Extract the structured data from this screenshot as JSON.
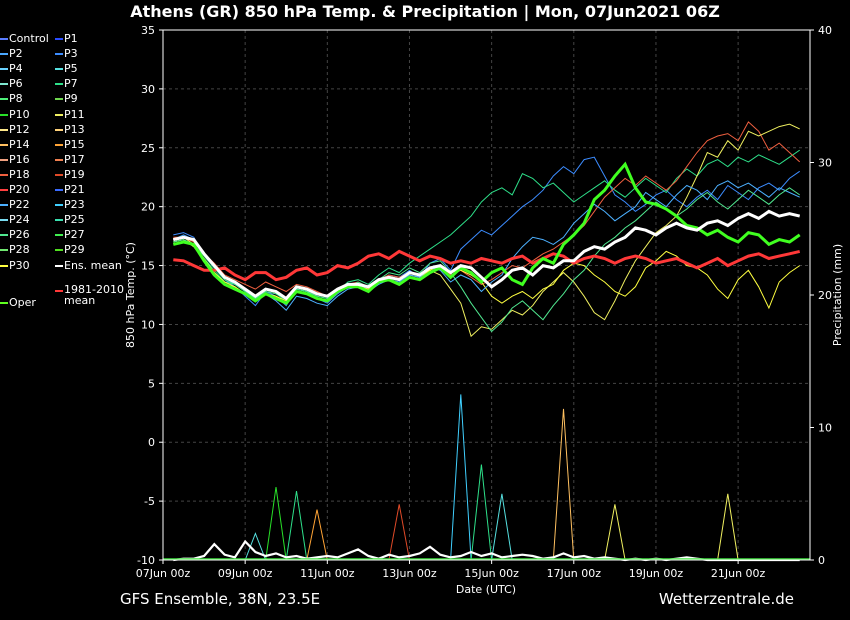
{
  "title": "Athens  (GR)  850 hPa Temp. & Precipitation | Mon, 07Jun2021 06Z",
  "footer_left": "GFS Ensemble, 38N, 23.5E",
  "footer_right": "Wetterzentrale.de",
  "legend": [
    {
      "label": "Control",
      "color": "#5a7dff"
    },
    {
      "label": "P1",
      "color": "#2a4dff"
    },
    {
      "label": "P2",
      "color": "#4aa8ff"
    },
    {
      "label": "P3",
      "color": "#3c8cff"
    },
    {
      "label": "P4",
      "color": "#6ad3ff"
    },
    {
      "label": "P5",
      "color": "#56e0e0"
    },
    {
      "label": "P6",
      "color": "#7ee8d0"
    },
    {
      "label": "P7",
      "color": "#2ee08a"
    },
    {
      "label": "P8",
      "color": "#4ef07a"
    },
    {
      "label": "P9",
      "color": "#6ed64e"
    },
    {
      "label": "P10",
      "color": "#28e028"
    },
    {
      "label": "P11",
      "color": "#f0f060"
    },
    {
      "label": "P12",
      "color": "#ffe88a"
    },
    {
      "label": "P13",
      "color": "#ffd27a"
    },
    {
      "label": "P14",
      "color": "#ffc060"
    },
    {
      "label": "P15",
      "color": "#ffa436"
    },
    {
      "label": "P16",
      "color": "#f0a080"
    },
    {
      "label": "P17",
      "color": "#f08050"
    },
    {
      "label": "P18",
      "color": "#f06040"
    },
    {
      "label": "P19",
      "color": "#e04a28"
    },
    {
      "label": "P20",
      "color": "#ff4040"
    },
    {
      "label": "P21",
      "color": "#3a6cff"
    },
    {
      "label": "P22",
      "color": "#4cb0ff"
    },
    {
      "label": "P23",
      "color": "#40d0ff"
    },
    {
      "label": "P24",
      "color": "#7adcf0"
    },
    {
      "label": "P25",
      "color": "#3ae0b0"
    },
    {
      "label": "P26",
      "color": "#50e890"
    },
    {
      "label": "P27",
      "color": "#40f050"
    },
    {
      "label": "P28",
      "color": "#70e870"
    },
    {
      "label": "P29",
      "color": "#50e020"
    },
    {
      "label": "P30",
      "color": "#ffff40"
    },
    {
      "label": "Ens. mean",
      "color": "#ffffff"
    },
    {
      "label": "Oper",
      "color": "#60ff20"
    },
    {
      "label": "1981-2010 mean",
      "color": "#ff3838"
    }
  ],
  "chart_data": {
    "type": "line",
    "title": "Athens  (GR)  850 hPa Temp. & Precipitation | Mon, 07Jun2021 06Z",
    "xlabel": "Date (UTC)",
    "ylabel": "850 hPa Temp. (°C)",
    "y2label": "Precipitation (mm)",
    "xlim": [
      0,
      15.75
    ],
    "ylim": [
      -10,
      35
    ],
    "y2lim": [
      0,
      40
    ],
    "x_ticks": [
      {
        "x": 0,
        "label": "07Jun 00z"
      },
      {
        "x": 2,
        "label": "09Jun 00z"
      },
      {
        "x": 4,
        "label": "11Jun 00z"
      },
      {
        "x": 6,
        "label": "13Jun 00z"
      },
      {
        "x": 8,
        "label": "15Jun 00z"
      },
      {
        "x": 10,
        "label": "17Jun 00z"
      },
      {
        "x": 12,
        "label": "19Jun 00z"
      },
      {
        "x": 14,
        "label": "21Jun 00z"
      }
    ],
    "y_ticks": [
      -10,
      -5,
      0,
      5,
      10,
      15,
      20,
      25,
      30,
      35
    ],
    "y2_ticks": [
      0,
      10,
      20,
      30,
      40
    ],
    "grid": true,
    "time_step_days": 0.25,
    "start_x": 0.25,
    "ens_mean": [
      17.2,
      17.4,
      17.2,
      16.0,
      15.0,
      14.0,
      13.6,
      13.0,
      12.4,
      13.0,
      12.8,
      12.2,
      13.2,
      13.0,
      12.6,
      12.4,
      13.0,
      13.4,
      13.4,
      13.2,
      13.8,
      14.0,
      13.8,
      14.4,
      14.2,
      14.8,
      15.0,
      14.4,
      15.0,
      14.8,
      14.0,
      13.2,
      13.8,
      14.6,
      14.8,
      14.2,
      15.0,
      14.8,
      15.4,
      15.4,
      16.2,
      16.6,
      16.4,
      17.0,
      17.4,
      18.2,
      18.0,
      17.6,
      18.2,
      18.6,
      18.2,
      18.0,
      18.6,
      18.8,
      18.4,
      19.0,
      19.4,
      19.0,
      19.6,
      19.2,
      19.4,
      19.2
    ],
    "oper": [
      16.8,
      17.0,
      16.8,
      15.4,
      14.2,
      13.4,
      13.0,
      12.6,
      12.0,
      12.6,
      12.2,
      11.8,
      12.8,
      12.6,
      12.2,
      12.0,
      12.8,
      13.2,
      13.2,
      12.8,
      13.6,
      13.8,
      13.4,
      14.0,
      13.8,
      14.4,
      14.8,
      14.0,
      14.8,
      14.4,
      13.6,
      14.4,
      14.8,
      13.8,
      13.4,
      14.8,
      15.6,
      15.2,
      16.8,
      17.6,
      18.6,
      20.6,
      21.4,
      22.6,
      23.6,
      21.6,
      20.4,
      20.2,
      19.8,
      19.2,
      18.4,
      18.2,
      17.6,
      18.0,
      17.4,
      17.0,
      17.8,
      17.6,
      16.8,
      17.2,
      17.0,
      17.6
    ],
    "climate_mean": [
      15.5,
      15.4,
      15.0,
      14.6,
      14.6,
      14.8,
      14.2,
      13.8,
      14.4,
      14.4,
      13.8,
      14.0,
      14.6,
      14.8,
      14.2,
      14.4,
      15.0,
      14.8,
      15.2,
      15.8,
      16.0,
      15.6,
      16.2,
      15.8,
      15.4,
      15.8,
      15.6,
      15.2,
      15.4,
      15.2,
      15.6,
      15.4,
      15.2,
      15.6,
      15.8,
      15.2,
      15.6,
      16.0,
      15.8,
      15.2,
      15.6,
      15.8,
      15.6,
      15.2,
      15.6,
      15.8,
      15.6,
      15.2,
      15.4,
      15.6,
      15.2,
      14.8,
      15.2,
      15.6,
      15.0,
      15.4,
      15.8,
      16.0,
      15.6,
      15.8,
      16.0,
      16.2
    ],
    "members_temp": [
      {
        "name": "P3",
        "values": [
          17.6,
          17.8,
          17.4,
          15.8,
          14.8,
          13.8,
          13.2,
          12.4,
          11.6,
          12.8,
          12.4,
          11.6,
          13.0,
          12.8,
          12.2,
          11.8,
          12.6,
          13.2,
          13.4,
          13.0,
          13.6,
          14.2,
          14.0,
          14.6,
          14.0,
          15.2,
          15.6,
          14.6,
          16.4,
          17.2,
          18.0,
          17.6,
          18.4,
          19.2,
          20.0,
          20.6,
          21.4,
          22.6,
          23.4,
          22.8,
          24.0,
          24.2,
          22.6,
          21.0,
          20.4,
          19.6,
          20.2,
          21.0,
          21.4,
          20.6,
          20.0,
          20.8,
          21.4,
          20.6,
          21.8,
          21.2,
          20.6,
          21.6,
          22.0,
          21.4,
          22.4,
          23.0
        ]
      },
      {
        "name": "P7",
        "values": [
          17.0,
          17.2,
          16.6,
          15.6,
          14.6,
          13.6,
          13.4,
          12.8,
          12.2,
          12.8,
          12.6,
          12.0,
          13.0,
          12.8,
          12.4,
          12.2,
          12.8,
          13.6,
          13.8,
          13.4,
          14.2,
          14.8,
          14.4,
          15.2,
          15.8,
          16.4,
          17.0,
          17.6,
          18.4,
          19.2,
          20.4,
          21.2,
          21.6,
          21.0,
          22.8,
          22.4,
          21.6,
          22.0,
          21.2,
          20.4,
          21.0,
          21.6,
          22.2,
          21.4,
          20.8,
          21.6,
          22.4,
          21.8,
          21.2,
          22.4,
          23.2,
          22.6,
          23.6,
          24.0,
          23.4,
          24.2,
          23.8,
          24.4,
          24.0,
          23.6,
          24.2,
          24.8
        ]
      },
      {
        "name": "P18",
        "values": [
          17.4,
          17.4,
          17.0,
          16.0,
          15.2,
          14.2,
          13.8,
          13.4,
          13.0,
          13.6,
          13.2,
          12.8,
          13.4,
          13.2,
          12.8,
          12.4,
          13.0,
          13.4,
          13.6,
          13.2,
          13.8,
          14.2,
          14.0,
          14.4,
          14.2,
          14.8,
          15.0,
          14.2,
          14.6,
          14.0,
          13.4,
          13.8,
          14.4,
          15.0,
          14.8,
          15.4,
          16.0,
          16.4,
          17.0,
          17.6,
          18.4,
          19.6,
          20.8,
          21.6,
          22.4,
          21.8,
          22.6,
          22.0,
          21.4,
          22.2,
          23.4,
          24.6,
          25.6,
          26.0,
          26.2,
          25.6,
          27.2,
          26.4,
          24.8,
          25.4,
          24.6,
          23.8
        ]
      },
      {
        "name": "P11",
        "values": [
          17.2,
          17.4,
          16.8,
          15.6,
          14.4,
          13.4,
          13.2,
          12.6,
          12.0,
          12.6,
          12.4,
          11.8,
          12.8,
          12.6,
          12.2,
          12.0,
          12.8,
          13.2,
          13.2,
          13.0,
          13.6,
          14.0,
          13.8,
          14.2,
          14.0,
          14.6,
          14.2,
          13.0,
          11.8,
          9.0,
          9.8,
          9.6,
          10.4,
          11.2,
          10.8,
          11.6,
          12.8,
          13.6,
          14.4,
          13.6,
          12.4,
          11.0,
          10.4,
          12.0,
          13.8,
          15.4,
          16.6,
          17.8,
          18.4,
          19.2,
          20.8,
          22.6,
          24.6,
          24.2,
          25.6,
          24.8,
          26.4,
          26.0,
          26.4,
          26.8,
          27.0,
          26.6
        ]
      },
      {
        "name": "P30",
        "values": [
          17.0,
          17.2,
          16.6,
          15.4,
          14.4,
          13.6,
          13.2,
          12.6,
          12.0,
          12.6,
          12.4,
          12.0,
          12.8,
          12.6,
          12.2,
          12.0,
          12.8,
          13.2,
          13.2,
          13.0,
          13.6,
          14.0,
          13.8,
          14.4,
          14.2,
          14.6,
          15.0,
          14.4,
          14.6,
          14.2,
          13.6,
          12.4,
          11.8,
          12.4,
          12.8,
          12.2,
          13.0,
          13.4,
          14.6,
          15.2,
          15.0,
          14.2,
          13.6,
          12.8,
          12.4,
          13.2,
          14.8,
          15.4,
          16.2,
          15.8,
          15.0,
          14.8,
          14.2,
          13.0,
          12.2,
          13.8,
          14.6,
          13.2,
          11.4,
          13.6,
          14.4,
          15.0
        ]
      },
      {
        "name": "P22",
        "values": [
          17.2,
          17.6,
          17.2,
          16.0,
          15.0,
          14.0,
          13.4,
          12.8,
          12.2,
          12.6,
          12.0,
          11.2,
          12.4,
          12.2,
          11.8,
          11.6,
          12.4,
          13.0,
          13.2,
          12.8,
          13.4,
          13.8,
          13.6,
          14.2,
          14.0,
          14.8,
          14.6,
          13.6,
          14.2,
          13.8,
          12.8,
          13.6,
          14.2,
          15.6,
          16.6,
          17.4,
          17.2,
          16.8,
          17.4,
          18.6,
          19.4,
          20.2,
          19.6,
          18.8,
          19.4,
          20.0,
          21.2,
          20.6,
          20.0,
          21.0,
          21.8,
          21.4,
          20.6,
          21.8,
          22.2,
          21.6,
          22.0,
          21.4,
          20.8,
          21.6,
          21.2,
          20.8
        ]
      },
      {
        "name": "P26",
        "values": [
          17.0,
          17.2,
          16.8,
          15.8,
          14.8,
          13.8,
          13.4,
          12.8,
          12.2,
          12.8,
          12.6,
          12.2,
          13.0,
          12.8,
          12.4,
          12.2,
          12.8,
          13.2,
          13.6,
          13.2,
          13.8,
          14.4,
          14.2,
          14.8,
          14.4,
          15.2,
          15.4,
          14.4,
          13.2,
          11.8,
          10.6,
          9.4,
          10.2,
          11.4,
          12.0,
          11.2,
          10.4,
          11.6,
          12.6,
          13.8,
          14.6,
          15.8,
          16.8,
          17.4,
          18.2,
          18.8,
          19.6,
          20.4,
          19.8,
          19.2,
          19.8,
          20.6,
          21.2,
          20.4,
          19.8,
          20.6,
          21.4,
          20.8,
          20.2,
          21.0,
          21.6,
          21.0
        ]
      }
    ],
    "precip": {
      "ens_mean": [
        0,
        0.1,
        0.1,
        0.3,
        1.2,
        0.4,
        0.2,
        1.4,
        0.6,
        0.3,
        0.5,
        0.2,
        0.3,
        0.1,
        0.2,
        0.3,
        0.2,
        0.5,
        0.8,
        0.3,
        0.1,
        0.4,
        0.2,
        0.3,
        0.5,
        1.0,
        0.4,
        0.2,
        0.3,
        0.6,
        0.3,
        0.5,
        0.2,
        0.3,
        0.4,
        0.3,
        0.1,
        0.2,
        0.5,
        0.2,
        0.3,
        0.1,
        0.2,
        0.1,
        0.0,
        0.1,
        0.0,
        0.1,
        0.0,
        0.1,
        0.2,
        0.1,
        0.0,
        0.0,
        0.0,
        0.0,
        0.0,
        0.0,
        0.0,
        0.0,
        0.0,
        0.0
      ],
      "spikes": [
        {
          "x": 2.25,
          "mm": 2.0,
          "series": "P5"
        },
        {
          "x": 2.75,
          "mm": 5.5,
          "series": "P10"
        },
        {
          "x": 3.25,
          "mm": 5.2,
          "series": "P7"
        },
        {
          "x": 3.75,
          "mm": 3.8,
          "series": "P15"
        },
        {
          "x": 5.75,
          "mm": 4.2,
          "series": "P19"
        },
        {
          "x": 7.25,
          "mm": 12.5,
          "series": "P23"
        },
        {
          "x": 7.75,
          "mm": 7.2,
          "series": "P7"
        },
        {
          "x": 8.25,
          "mm": 5.0,
          "series": "P5"
        },
        {
          "x": 9.75,
          "mm": 11.4,
          "series": "P14"
        },
        {
          "x": 11.0,
          "mm": 4.2,
          "series": "P11"
        },
        {
          "x": 13.75,
          "mm": 5.0,
          "series": "P11"
        }
      ]
    }
  }
}
